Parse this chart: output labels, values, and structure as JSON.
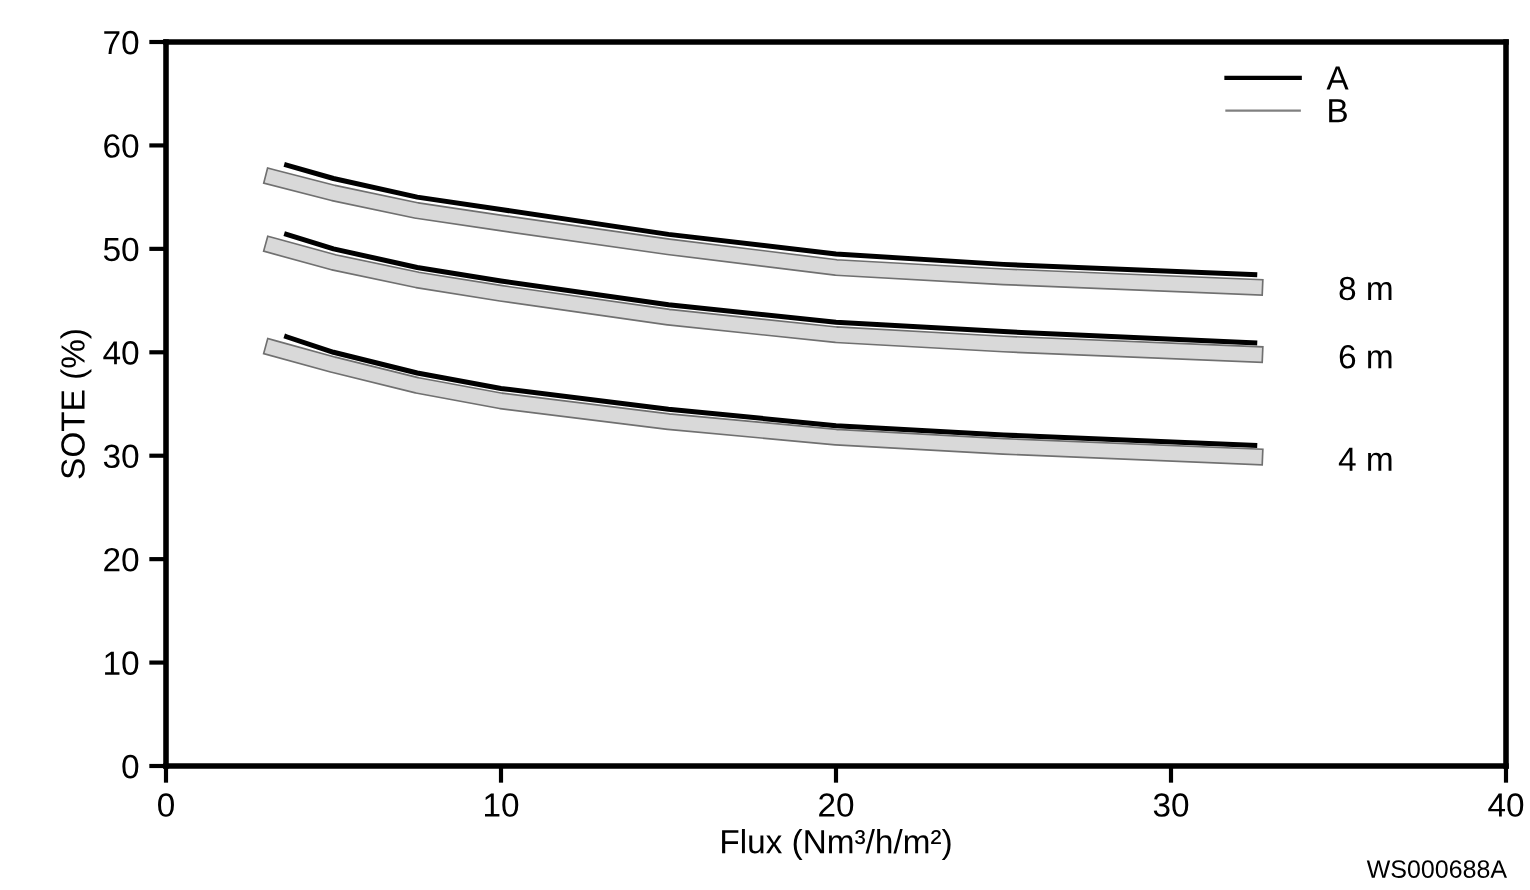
{
  "chart_data": {
    "type": "line",
    "xlabel": "Flux (Nm³/h/m²)",
    "ylabel": "SOTE (%)",
    "xlim": [
      0,
      40
    ],
    "xticks": [
      0,
      10,
      20,
      30,
      40
    ],
    "ylim": [
      0,
      70
    ],
    "yticks": [
      0,
      10,
      20,
      30,
      40,
      50,
      60,
      70
    ],
    "grid": false,
    "legend": "top right",
    "marker": "none",
    "line_style": "solid",
    "series": [
      {
        "name": "A",
        "color": "#000000",
        "x": [
          3.6,
          5,
          7.5,
          10,
          15,
          20,
          25,
          32.5
        ],
        "values": [
          58.1,
          56.8,
          55.0,
          53.8,
          51.4,
          49.5,
          48.5,
          47.5
        ]
      },
      {
        "name": "B",
        "color": "#d9d9d9",
        "x": [
          3.2,
          5,
          7.5,
          10,
          15,
          20,
          25,
          32.5
        ],
        "values": [
          56.9,
          55.4,
          53.7,
          52.5,
          50.2,
          48.2,
          47.3,
          46.3
        ]
      },
      {
        "color": "#000000",
        "x": [
          3.6,
          5,
          7.5,
          10,
          15,
          20,
          25,
          32.5
        ],
        "values": [
          51.4,
          50.0,
          48.2,
          46.9,
          44.6,
          42.9,
          42.0,
          40.9
        ]
      },
      {
        "color": "#d9d9d9",
        "x": [
          3.2,
          5,
          7.5,
          10,
          15,
          20,
          25,
          32.5
        ],
        "values": [
          50.3,
          48.7,
          47.0,
          45.7,
          43.4,
          41.7,
          40.8,
          39.8
        ]
      },
      {
        "color": "#000000",
        "x": [
          3.6,
          5,
          7.5,
          10,
          15,
          20,
          25,
          32.5
        ],
        "values": [
          41.5,
          40.0,
          38.0,
          36.5,
          34.5,
          32.9,
          32.0,
          31.0
        ]
      },
      {
        "color": "#d9d9d9",
        "x": [
          3.2,
          5,
          7.5,
          10,
          15,
          20,
          25,
          32.5
        ],
        "values": [
          40.4,
          38.8,
          36.8,
          35.3,
          33.3,
          31.8,
          30.9,
          29.9
        ]
      }
    ],
    "annotations": [
      "8 m",
      "6 m",
      "4 m",
      "WS000688A"
    ]
  }
}
